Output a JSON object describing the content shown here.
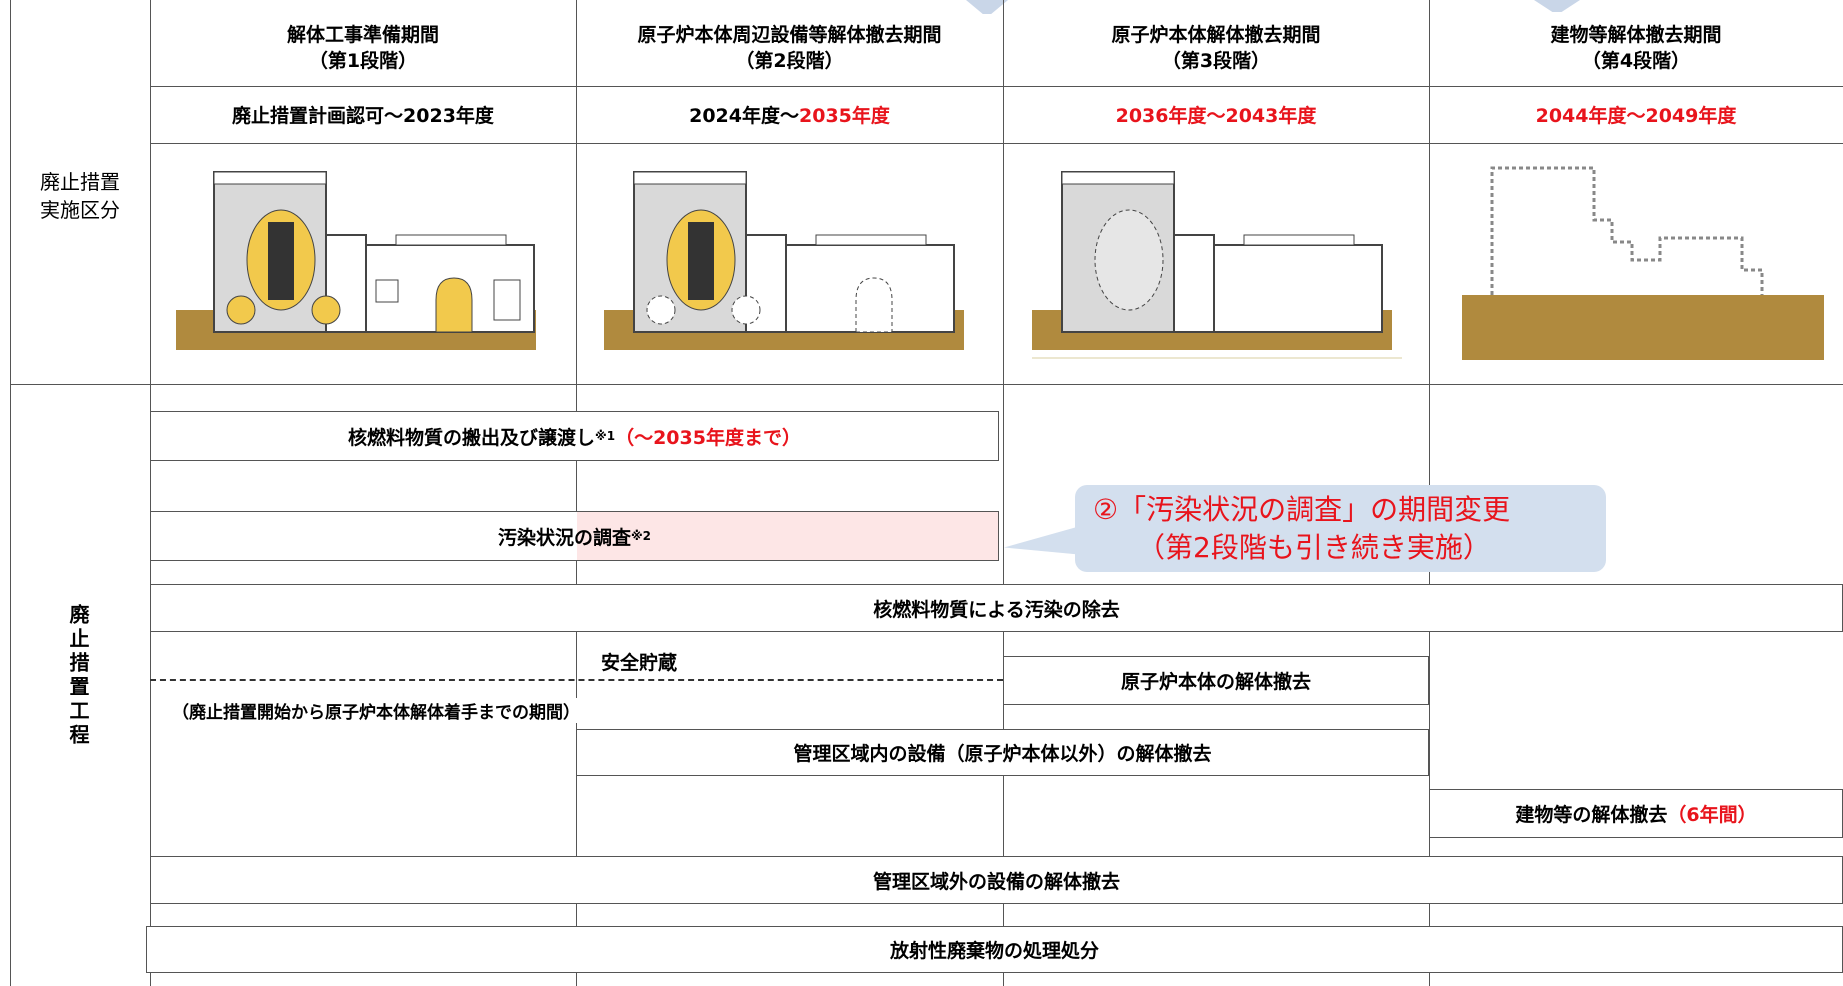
{
  "row_labels": {
    "stages": [
      "廃止措置",
      "実施区分"
    ],
    "process": "廃止措置工程"
  },
  "stages": [
    {
      "name": "解体工事準備期間",
      "number": "（第1段階）",
      "period": "廃止措置計画認可～2023年度"
    },
    {
      "name": "原子炉本体周辺設備等解体撤去期間",
      "number": "（第2段階）",
      "period_start": "2024年度～",
      "period_end": "2035年度"
    },
    {
      "name": "原子炉本体解体撤去期間",
      "number": "（第3段階）",
      "period": "2036年度～2043年度"
    },
    {
      "name": "建物等解体撤去期間",
      "number": "（第4段階）",
      "period": "2044年度～2049年度"
    }
  ],
  "processes": {
    "fuel_transfer": {
      "text": "核燃料物質の搬出及び譲渡し",
      "note": "※1",
      "period": "（～2035年度まで）"
    },
    "contamination_survey": {
      "text": "汚染状況の調査",
      "note": "※2"
    },
    "decontamination": "核燃料物質による汚染の除去",
    "safe_storage": "安全貯蔵",
    "safe_storage_note": "（廃止措置開始から原子炉本体解体着手までの期間）",
    "reactor_dismantling": "原子炉本体の解体撤去",
    "controlled_area_equipment": "管理区域内の設備（原子炉本体以外）の解体撤去",
    "building_dismantling": {
      "text": "建物等の解体撤去",
      "period": "（6年間）"
    },
    "outside_controlled_area": "管理区域外の設備の解体撤去",
    "radioactive_waste": "放射性廃棄物の処理処分"
  },
  "callout": [
    "②「汚染状況の調査」の期間変更",
    "（第2段階も引き続き実施）"
  ]
}
